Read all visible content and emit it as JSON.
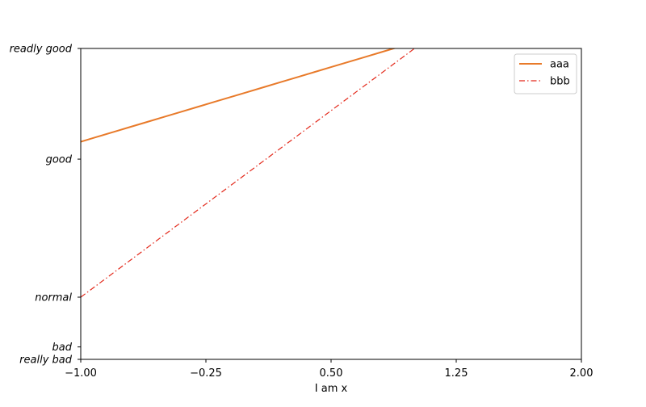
{
  "chart_data": {
    "type": "line",
    "title": "",
    "xlabel": "I am x",
    "ylabel": "",
    "xlim": [
      -1.0,
      2.0
    ],
    "ylim": [
      -2,
      3
    ],
    "grid": false,
    "legend_position": "top-right",
    "x_ticks": [
      {
        "value": -1.0,
        "label": "−1.00"
      },
      {
        "value": -0.25,
        "label": "−0.25"
      },
      {
        "value": 0.5,
        "label": "0.50"
      },
      {
        "value": 1.25,
        "label": "1.25"
      },
      {
        "value": 2.0,
        "label": "2.00"
      }
    ],
    "y_ticks": [
      {
        "value": -2,
        "label": "really bad"
      },
      {
        "value": -1.8,
        "label": "bad"
      },
      {
        "value": -1,
        "label": "normal"
      },
      {
        "value": 1.22,
        "label": "good"
      },
      {
        "value": 3,
        "label": "readly good"
      }
    ],
    "series": [
      {
        "name": "aaa",
        "color": "#e87a2a",
        "style": "solid",
        "x": [
          -1.0,
          -0.9,
          -0.8,
          -0.7,
          -0.6,
          -0.5,
          -0.4,
          -0.3,
          -0.2,
          -0.1,
          0.0,
          0.1,
          0.2,
          0.3,
          0.4,
          0.5,
          0.6,
          0.7,
          0.8,
          0.9,
          1.0
        ],
        "y": [
          1.5,
          1.58,
          1.66,
          1.74,
          1.82,
          1.9,
          1.98,
          2.06,
          2.14,
          2.22,
          2.3,
          2.38,
          2.46,
          2.54,
          2.62,
          2.7,
          2.78,
          2.86,
          2.94,
          3.02,
          3.1
        ]
      },
      {
        "name": "bbb",
        "color": "#e3281a",
        "style": "dashdot",
        "x": [
          -1.0,
          1.0
        ],
        "y": [
          -1.0,
          3.0
        ]
      }
    ]
  }
}
